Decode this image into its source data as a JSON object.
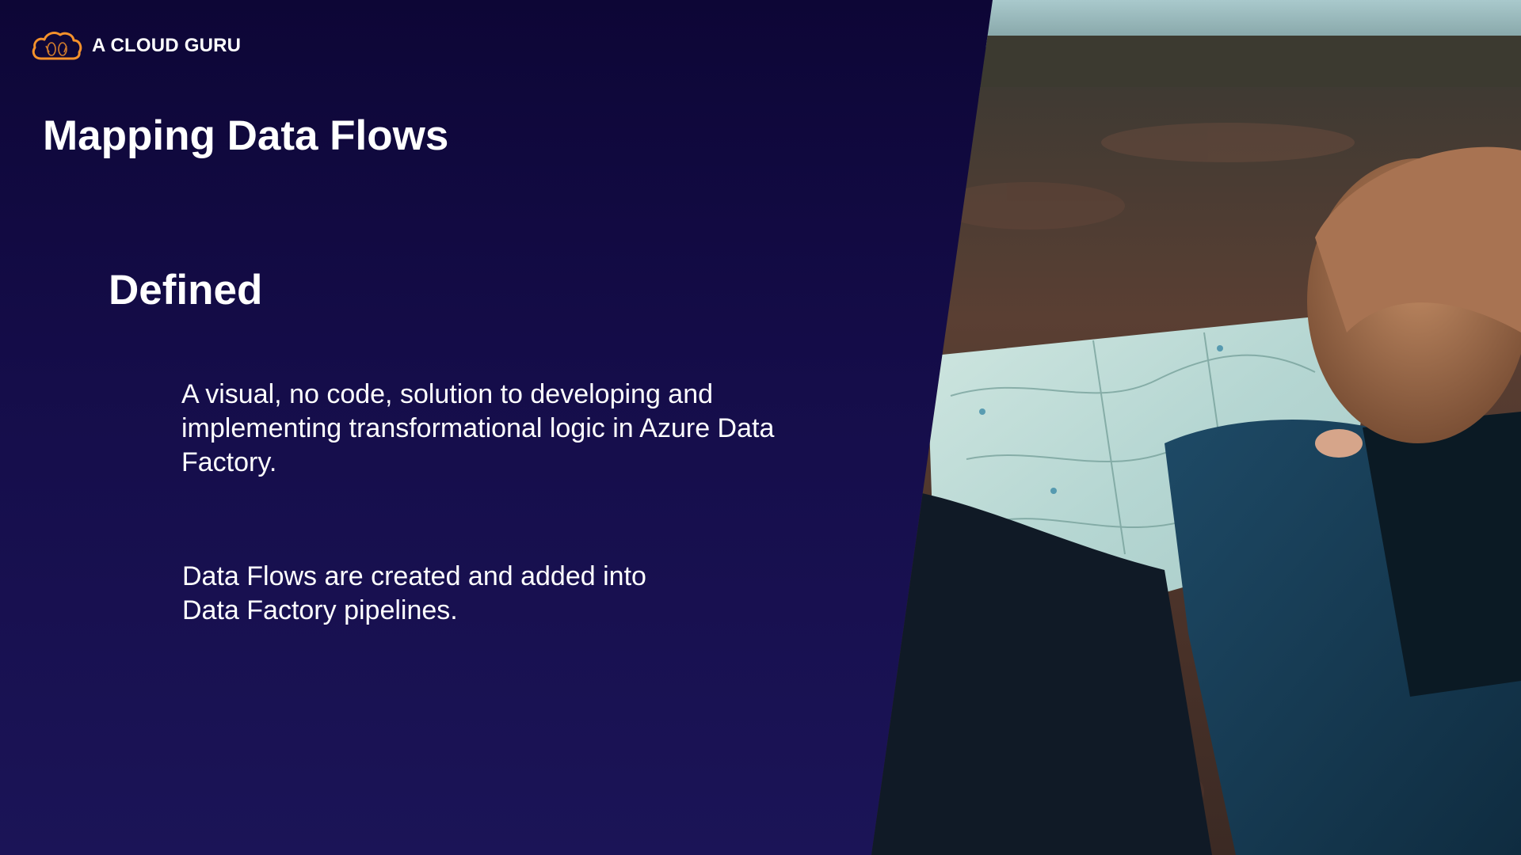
{
  "brand": {
    "name": "A CLOUD GURU",
    "icon": "cloud-logo-icon",
    "accent_color": "#f4912b"
  },
  "slide": {
    "title": "Mapping Data Flows",
    "subtitle": "Defined",
    "paragraphs": [
      "A visual, no code, solution to developing and implementing transformational logic in Azure Data Factory.",
      "Data Flows are created and added into Data Factory pipelines."
    ],
    "background_color": "#150d4a",
    "photo": "photo of a child in a blue jacket holding an open map outdoors"
  }
}
